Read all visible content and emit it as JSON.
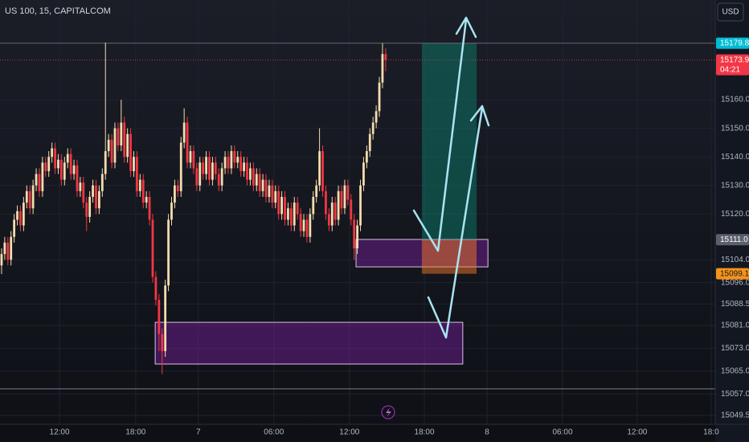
{
  "chart_data": {
    "type": "candlestick",
    "title": "US 100, 15, CAPITALCOM",
    "currency": "USD",
    "countdown": "04:21",
    "up_color": "#f3dcae",
    "down_color": "#f23645",
    "grid": true,
    "ylim": [
      15046.4,
      15194.9
    ],
    "xlim": [
      -0.5,
      226.7
    ],
    "yticks": [
      {
        "value": 15160,
        "label": "15160.0"
      },
      {
        "value": 15150,
        "label": "15150.0"
      },
      {
        "value": 15140,
        "label": "15140.0"
      },
      {
        "value": 15130,
        "label": "15130.0"
      },
      {
        "value": 15120,
        "label": "15120.0"
      },
      {
        "value": 15104,
        "label": "15104.0"
      },
      {
        "value": 15096,
        "label": "15096.0"
      },
      {
        "value": 15088.5,
        "label": "15088.5"
      },
      {
        "value": 15081,
        "label": "15081.0"
      },
      {
        "value": 15073,
        "label": "15073.0"
      },
      {
        "value": 15065,
        "label": "15065.0"
      },
      {
        "value": 15057,
        "label": "15057.0"
      },
      {
        "value": 15049.5,
        "label": "15049.5"
      }
    ],
    "xticks": [
      {
        "value": 18.4,
        "label": "12:00"
      },
      {
        "value": 42.6,
        "label": "18:00"
      },
      {
        "value": 62.5,
        "label": "7"
      },
      {
        "value": 86.5,
        "label": "06:00"
      },
      {
        "value": 110.5,
        "label": "12:00"
      },
      {
        "value": 134.3,
        "label": "18:00"
      },
      {
        "value": 154.2,
        "label": "8"
      },
      {
        "value": 178.2,
        "label": "06:00"
      },
      {
        "value": 201.9,
        "label": "12:00"
      },
      {
        "value": 225.4,
        "label": "18:0"
      }
    ],
    "price_labels": [
      {
        "value": 15179.8,
        "label": "15179.8",
        "color": "#00bcd4",
        "line": "#787b86"
      },
      {
        "value": 15173.9,
        "label": "15173.9",
        "color": "#f23645",
        "line": "#f23645"
      },
      {
        "value": 15111.0,
        "label": "15111.0",
        "color": "#5d606b"
      },
      {
        "value": 15099.1,
        "label": "15099.1",
        "color": "#f7931a"
      }
    ],
    "hlines": [
      15058.8
    ],
    "zones": [
      {
        "x0": 112.6,
        "x1": 154.5,
        "top": 15111.1,
        "bottom": 15101.5
      },
      {
        "x0": 48.8,
        "x1": 146.5,
        "top": 15082.1,
        "bottom": 15067.5
      }
    ],
    "position": {
      "x0": 133.5,
      "x1": 150.9,
      "target": 15179.8,
      "entry": 15111.0,
      "stop": 15099.1
    },
    "ohlc": [
      [
        15102,
        15108,
        15099,
        15106
      ],
      [
        15106,
        15112,
        15104,
        15110
      ],
      [
        15110,
        15112,
        15102,
        15104
      ],
      [
        15104,
        15114,
        15102,
        15112
      ],
      [
        15112,
        15120,
        15110,
        15118
      ],
      [
        15118,
        15123,
        15116,
        15121
      ],
      [
        15121,
        15123,
        15114,
        15116
      ],
      [
        15116,
        15126,
        15114,
        15124
      ],
      [
        15124,
        15130,
        15122,
        15128
      ],
      [
        15128,
        15130,
        15120,
        15122
      ],
      [
        15122,
        15132,
        15120,
        15130
      ],
      [
        15130,
        15136,
        15128,
        15134
      ],
      [
        15134,
        15136,
        15126,
        15128
      ],
      [
        15128,
        15140,
        15126,
        15138
      ],
      [
        15138,
        15140,
        15133,
        15135
      ],
      [
        15135,
        15142,
        15133,
        15140
      ],
      [
        15140,
        15145,
        15138,
        15143
      ],
      [
        15143,
        15145,
        15134,
        15136
      ],
      [
        15136,
        15141,
        15134,
        15139
      ],
      [
        15139,
        15141,
        15130,
        15132
      ],
      [
        15132,
        15140,
        15130,
        15138
      ],
      [
        15138,
        15143,
        15136,
        15141
      ],
      [
        15141,
        15143,
        15132,
        15134
      ],
      [
        15134,
        15139,
        15132,
        15137
      ],
      [
        15137,
        15139,
        15126,
        15128
      ],
      [
        15128,
        15133,
        15126,
        15131
      ],
      [
        15131,
        15133,
        15122,
        15124
      ],
      [
        15124,
        15126,
        15114,
        15119
      ],
      [
        15119,
        15128,
        15117,
        15126
      ],
      [
        15126,
        15132,
        15124,
        15130
      ],
      [
        15130,
        15132,
        15120,
        15122
      ],
      [
        15122,
        15130,
        15120,
        15128
      ],
      [
        15128,
        15136,
        15126,
        15134
      ],
      [
        15134,
        15180,
        15132,
        15142
      ],
      [
        15142,
        15148,
        15140,
        15146
      ],
      [
        15146,
        15148,
        15136,
        15138
      ],
      [
        15138,
        15152,
        15136,
        15150
      ],
      [
        15150,
        15152,
        15142,
        15144
      ],
      [
        15144,
        15160,
        15142,
        15152
      ],
      [
        15152,
        15154,
        15138,
        15140
      ],
      [
        15140,
        15150,
        15138,
        15148
      ],
      [
        15148,
        15150,
        15133,
        15135
      ],
      [
        15135,
        15142,
        15133,
        15140
      ],
      [
        15140,
        15142,
        15126,
        15128
      ],
      [
        15128,
        15134,
        15126,
        15132
      ],
      [
        15132,
        15134,
        15122,
        15124
      ],
      [
        15124,
        15128,
        15122,
        15126
      ],
      [
        15126,
        15128,
        15116,
        15118
      ],
      [
        15118,
        15120,
        15096,
        15098
      ],
      [
        15098,
        15100,
        15088,
        15090
      ],
      [
        15090,
        15092,
        15072,
        15078
      ],
      [
        15078,
        15080,
        15064,
        15072
      ],
      [
        15072,
        15097,
        15070,
        15095
      ],
      [
        15095,
        15120,
        15093,
        15118
      ],
      [
        15118,
        15126,
        15116,
        15124
      ],
      [
        15124,
        15132,
        15122,
        15130
      ],
      [
        15130,
        15132,
        15126,
        15128
      ],
      [
        15128,
        15147,
        15126,
        15145
      ],
      [
        15145,
        15157,
        15143,
        15152
      ],
      [
        15152,
        15154,
        15136,
        15138
      ],
      [
        15138,
        15144,
        15136,
        15142
      ],
      [
        15142,
        15144,
        15134,
        15136
      ],
      [
        15136,
        15138,
        15128,
        15130
      ],
      [
        15130,
        15140,
        15128,
        15138
      ],
      [
        15138,
        15140,
        15132,
        15134
      ],
      [
        15134,
        15142,
        15132,
        15140
      ],
      [
        15140,
        15142,
        15130,
        15132
      ],
      [
        15132,
        15140,
        15130,
        15138
      ],
      [
        15138,
        15140,
        15132,
        15134
      ],
      [
        15134,
        15136,
        15128,
        15130
      ],
      [
        15130,
        15138,
        15128,
        15136
      ],
      [
        15136,
        15142,
        15134,
        15140
      ],
      [
        15140,
        15142,
        15134,
        15136
      ],
      [
        15136,
        15144,
        15134,
        15142
      ],
      [
        15142,
        15144,
        15136,
        15138
      ],
      [
        15138,
        15142,
        15136,
        15140
      ],
      [
        15140,
        15142,
        15133,
        15135
      ],
      [
        15135,
        15140,
        15133,
        15138
      ],
      [
        15138,
        15140,
        15130,
        15132
      ],
      [
        15132,
        15138,
        15130,
        15136
      ],
      [
        15136,
        15138,
        15128,
        15130
      ],
      [
        15130,
        15136,
        15128,
        15134
      ],
      [
        15134,
        15136,
        15126,
        15128
      ],
      [
        15128,
        15134,
        15126,
        15132
      ],
      [
        15132,
        15134,
        15124,
        15126
      ],
      [
        15126,
        15132,
        15124,
        15130
      ],
      [
        15130,
        15132,
        15122,
        15124
      ],
      [
        15124,
        15130,
        15122,
        15128
      ],
      [
        15128,
        15130,
        15118,
        15120
      ],
      [
        15120,
        15128,
        15118,
        15126
      ],
      [
        15126,
        15128,
        15116,
        15118
      ],
      [
        15118,
        15124,
        15116,
        15122
      ],
      [
        15122,
        15124,
        15114,
        15116
      ],
      [
        15116,
        15126,
        15114,
        15124
      ],
      [
        15124,
        15126,
        15118,
        15120
      ],
      [
        15120,
        15122,
        15112,
        15114
      ],
      [
        15114,
        15120,
        15112,
        15118
      ],
      [
        15118,
        15120,
        15110,
        15112
      ],
      [
        15112,
        15122,
        15110,
        15120
      ],
      [
        15120,
        15128,
        15118,
        15126
      ],
      [
        15126,
        15132,
        15124,
        15130
      ],
      [
        15130,
        15150,
        15128,
        15142
      ],
      [
        15142,
        15144,
        15126,
        15128
      ],
      [
        15128,
        15130,
        15118,
        15120
      ],
      [
        15120,
        15122,
        15114,
        15116
      ],
      [
        15116,
        15126,
        15114,
        15124
      ],
      [
        15124,
        15126,
        15116,
        15118
      ],
      [
        15118,
        15130,
        15116,
        15128
      ],
      [
        15128,
        15130,
        15120,
        15122
      ],
      [
        15122,
        15132,
        15120,
        15130
      ],
      [
        15130,
        15132,
        15123,
        15125
      ],
      [
        15125,
        15127,
        15116,
        15118
      ],
      [
        15118,
        15120,
        15104,
        15108
      ],
      [
        15108,
        15118,
        15106,
        15116
      ],
      [
        15116,
        15132,
        15114,
        15130
      ],
      [
        15130,
        15140,
        15128,
        15138
      ],
      [
        15138,
        15144,
        15136,
        15142
      ],
      [
        15142,
        15150,
        15140,
        15148
      ],
      [
        15148,
        15154,
        15146,
        15152
      ],
      [
        15152,
        15158,
        15150,
        15156
      ],
      [
        15156,
        15168,
        15154,
        15166
      ],
      [
        15166,
        15179.8,
        15164,
        15176
      ],
      [
        15176,
        15178,
        15170,
        15173.9
      ]
    ]
  }
}
